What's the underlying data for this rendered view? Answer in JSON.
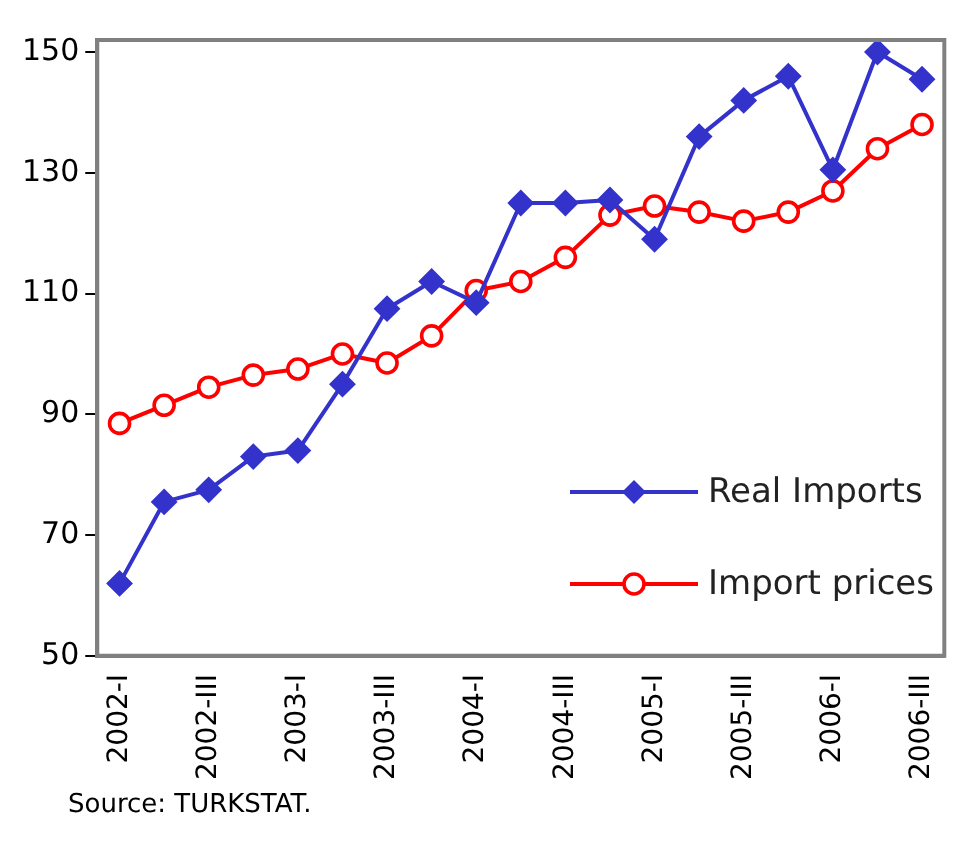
{
  "chart_data": {
    "type": "line",
    "categories": [
      "2002-I",
      null,
      "2002-III",
      null,
      "2003-I",
      null,
      "2003-III",
      null,
      "2004-I",
      null,
      "2004-III",
      null,
      "2005-I",
      null,
      "2005-III",
      null,
      "2006-I",
      null,
      "2006-III"
    ],
    "series": [
      {
        "name": "Real Imports",
        "color": "#3333cc",
        "marker": "diamond",
        "values": [
          62,
          75.5,
          77.5,
          83,
          84,
          95,
          107.5,
          112,
          108.5,
          125,
          125,
          125.5,
          119,
          136,
          142,
          146,
          130.5,
          150,
          145.5
        ]
      },
      {
        "name": "Import prices",
        "color": "#ff0000",
        "marker": "circle",
        "values": [
          88.5,
          91.5,
          94.5,
          96.5,
          97.5,
          100,
          98.5,
          103,
          110.5,
          112,
          116,
          123,
          124.5,
          123.5,
          122,
          123.5,
          127,
          134,
          138
        ]
      }
    ],
    "ylim": [
      50,
      152
    ],
    "yticks": [
      50,
      70,
      90,
      110,
      130,
      150
    ],
    "grid": false,
    "legend": "bottom right",
    "annotations": [
      "Source: TURKSTAT."
    ]
  }
}
